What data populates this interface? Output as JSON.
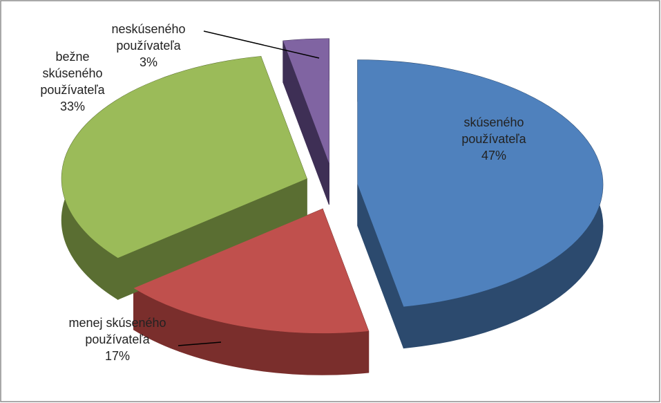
{
  "chart_data": {
    "type": "pie3d",
    "categories": [
      "skúseného používateľa",
      "menej skúseného používateľa",
      "bežne skúseného používateľa",
      "neskúseného používateľa"
    ],
    "values": [
      47,
      17,
      33,
      3
    ],
    "value_labels": [
      "47%",
      "17%",
      "33%",
      "3%"
    ],
    "colors": [
      "#4f81bd",
      "#c0504d",
      "#9bbb59",
      "#8064a2"
    ],
    "side_colors": [
      "#2c4a6e",
      "#7a2e2c",
      "#5a6e32",
      "#3e2f55"
    ]
  }
}
